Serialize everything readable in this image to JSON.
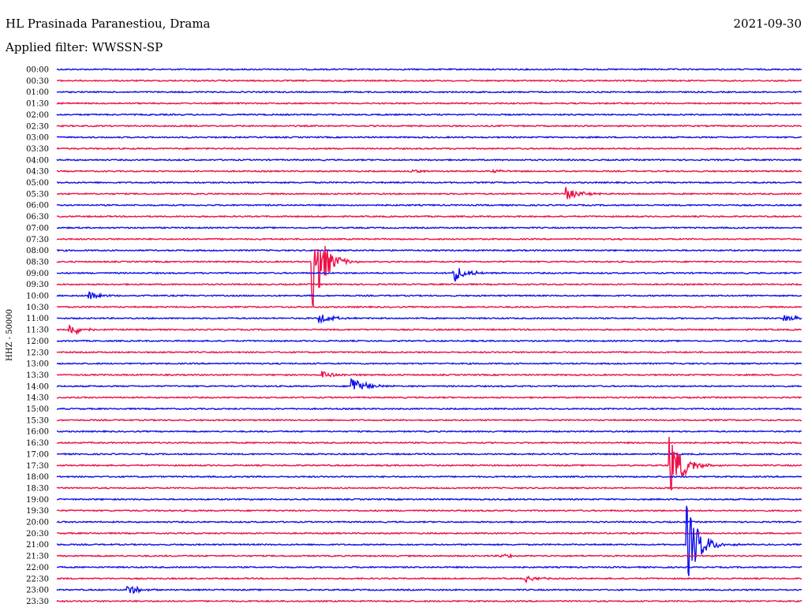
{
  "header": {
    "station": "HL Prasinada Paranestiou, Drama",
    "date": "2021-09-30",
    "filter": "Applied filter: WWSSN-SP"
  },
  "chart_data": {
    "type": "line",
    "title": "HL Prasinada Paranestiou, Drama",
    "ylabel": "HHZ - 50000",
    "colors": {
      "even": "#1010ee",
      "odd": "#ee1048"
    },
    "rows": [
      "00:00",
      "00:30",
      "01:00",
      "01:30",
      "02:00",
      "02:30",
      "03:00",
      "03:30",
      "04:00",
      "04:30",
      "05:00",
      "05:30",
      "06:00",
      "06:30",
      "07:00",
      "07:30",
      "08:00",
      "08:30",
      "09:00",
      "09:30",
      "10:00",
      "10:30",
      "11:00",
      "11:30",
      "12:00",
      "12:30",
      "13:00",
      "13:30",
      "14:00",
      "14:30",
      "15:00",
      "15:30",
      "16:00",
      "16:30",
      "17:00",
      "17:30",
      "18:00",
      "18:30",
      "19:00",
      "19:30",
      "20:00",
      "20:30",
      "21:00",
      "21:30",
      "22:00",
      "22:30",
      "23:00",
      "23:30"
    ],
    "events": [
      {
        "row": 9,
        "minute": 14.2,
        "amp": 0.25
      },
      {
        "row": 9,
        "minute": 17.6,
        "amp": 0.15
      },
      {
        "row": 11,
        "minute": 20.5,
        "amp": 0.7
      },
      {
        "row": 17,
        "minute": 10.3,
        "amp": 4.5
      },
      {
        "row": 18,
        "minute": 16.0,
        "amp": 0.8
      },
      {
        "row": 20,
        "minute": 1.3,
        "amp": 0.35
      },
      {
        "row": 22,
        "minute": 10.6,
        "amp": 0.45
      },
      {
        "row": 22,
        "minute": 29.3,
        "amp": 0.4
      },
      {
        "row": 23,
        "minute": 0.5,
        "amp": 0.6
      },
      {
        "row": 27,
        "minute": 10.7,
        "amp": 0.4
      },
      {
        "row": 28,
        "minute": 11.9,
        "amp": 0.9
      },
      {
        "row": 35,
        "minute": 24.7,
        "amp": 3.0
      },
      {
        "row": 42,
        "minute": 25.4,
        "amp": 3.5
      },
      {
        "row": 43,
        "minute": 17.9,
        "amp": 0.2
      },
      {
        "row": 45,
        "minute": 18.9,
        "amp": 0.3
      },
      {
        "row": 46,
        "minute": 2.8,
        "amp": 0.5
      }
    ]
  }
}
